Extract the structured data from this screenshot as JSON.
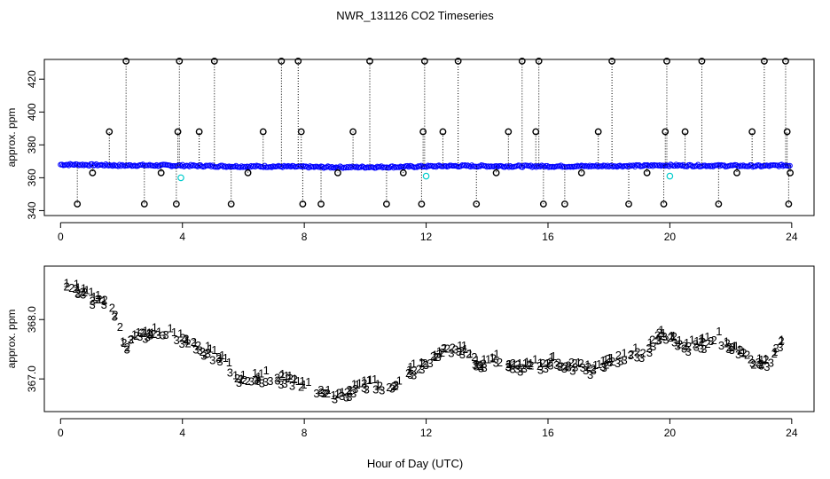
{
  "chart_data": {
    "title": "NWR_131126  CO2 Timeseries",
    "xlabel": "Hour of Day (UTC)",
    "panels": [
      {
        "name": "raw",
        "type": "scatter",
        "ylabel": "approx. ppm",
        "xlim": [
          -0.3,
          24.5
        ],
        "ylim": [
          337,
          432
        ],
        "xticks": [
          0,
          4,
          8,
          12,
          16,
          20,
          24
        ],
        "yticks": [
          340,
          360,
          380,
          400,
          420
        ],
        "ytick_labels": [
          "340",
          "360",
          "380",
          "400",
          "420"
        ],
        "baseline": [
          [
            0.0,
            368
          ],
          [
            0.5,
            368
          ],
          [
            1.0,
            367.8
          ],
          [
            1.5,
            367.7
          ],
          [
            2.0,
            367.4
          ],
          [
            2.5,
            367.6
          ],
          [
            3.0,
            367.5
          ],
          [
            4.0,
            367.4
          ],
          [
            5.0,
            367.1
          ],
          [
            6.0,
            366.9
          ],
          [
            7.0,
            366.9
          ],
          [
            8.0,
            366.6
          ],
          [
            9.0,
            366.4
          ],
          [
            10.0,
            366.5
          ],
          [
            11.0,
            366.6
          ],
          [
            12.0,
            366.9
          ],
          [
            13.0,
            367.2
          ],
          [
            14.0,
            367.1
          ],
          [
            15.0,
            367.0
          ],
          [
            16.0,
            367.0
          ],
          [
            17.0,
            367.0
          ],
          [
            18.0,
            367.2
          ],
          [
            19.0,
            367.2
          ],
          [
            19.8,
            367.6
          ],
          [
            20.5,
            367.4
          ],
          [
            21.0,
            367.4
          ],
          [
            22.0,
            367.3
          ],
          [
            23.0,
            367.1
          ],
          [
            23.7,
            367.5
          ]
        ],
        "spikes_high": [
          2.15,
          3.9,
          5.05,
          7.25,
          7.8,
          10.15,
          11.95,
          13.05,
          15.15,
          15.7,
          18.1,
          19.9,
          21.05,
          23.1,
          23.8
        ],
        "spikes_mid": [
          1.6,
          3.85,
          4.55,
          6.65,
          7.9,
          9.6,
          11.9,
          12.55,
          14.7,
          15.6,
          17.65,
          19.85,
          20.5,
          22.7,
          23.85
        ],
        "spikes_low": [
          0.55,
          2.75,
          3.8,
          5.6,
          7.95,
          8.55,
          10.7,
          11.85,
          13.65,
          15.85,
          16.55,
          18.65,
          19.8,
          21.6,
          23.9
        ],
        "spikes_small": [
          1.05,
          3.3,
          6.15,
          9.1,
          11.25,
          14.3,
          17.1,
          19.25,
          22.2,
          23.95
        ],
        "spike_levels": {
          "high": 431,
          "mid": 388,
          "low": 344,
          "small": 363
        },
        "cyan_points": [
          [
            3.95,
            360
          ],
          [
            12.0,
            361
          ],
          [
            20.0,
            361
          ]
        ]
      },
      {
        "name": "smoothed",
        "type": "scatter",
        "ylabel": "approx. ppm",
        "xlim": [
          -0.3,
          24.5
        ],
        "ylim": [
          366.45,
          368.9
        ],
        "xticks": [
          0,
          4,
          8,
          12,
          16,
          20,
          24
        ],
        "yticks": [
          367.0,
          368.0
        ],
        "ytick_labels": [
          "367.0",
          "368.0"
        ],
        "series_labels": [
          "1",
          "2",
          "3"
        ],
        "series_colors": [
          "#ff0000",
          "#00bb00",
          "#0000ff"
        ],
        "path": [
          [
            0.0,
            368.65
          ],
          [
            0.3,
            368.55
          ],
          [
            0.7,
            368.45
          ],
          [
            1.0,
            368.35
          ],
          [
            1.4,
            368.3
          ],
          [
            1.7,
            368.2
          ],
          [
            1.9,
            367.95
          ],
          [
            2.1,
            367.45
          ],
          [
            2.3,
            367.7
          ],
          [
            2.6,
            367.75
          ],
          [
            3.0,
            367.75
          ],
          [
            3.5,
            367.8
          ],
          [
            3.9,
            367.7
          ],
          [
            4.4,
            367.55
          ],
          [
            4.8,
            367.45
          ],
          [
            5.2,
            367.35
          ],
          [
            5.6,
            367.15
          ],
          [
            5.9,
            366.95
          ],
          [
            6.3,
            367.0
          ],
          [
            6.8,
            367.05
          ],
          [
            7.3,
            367.0
          ],
          [
            7.7,
            366.95
          ],
          [
            8.1,
            366.85
          ],
          [
            8.5,
            366.8
          ],
          [
            9.0,
            366.7
          ],
          [
            9.4,
            366.75
          ],
          [
            9.8,
            366.9
          ],
          [
            10.3,
            366.9
          ],
          [
            10.8,
            366.85
          ],
          [
            11.2,
            366.95
          ],
          [
            11.6,
            367.15
          ],
          [
            12.1,
            367.3
          ],
          [
            12.5,
            367.45
          ],
          [
            13.0,
            367.55
          ],
          [
            13.4,
            367.4
          ],
          [
            13.8,
            367.2
          ],
          [
            14.2,
            367.35
          ],
          [
            14.6,
            367.25
          ],
          [
            15.0,
            367.2
          ],
          [
            15.4,
            367.25
          ],
          [
            15.8,
            367.2
          ],
          [
            16.2,
            367.3
          ],
          [
            16.6,
            367.2
          ],
          [
            17.0,
            367.25
          ],
          [
            17.5,
            367.15
          ],
          [
            18.0,
            367.3
          ],
          [
            18.4,
            367.35
          ],
          [
            18.8,
            367.45
          ],
          [
            19.2,
            367.45
          ],
          [
            19.6,
            367.75
          ],
          [
            19.9,
            367.75
          ],
          [
            20.3,
            367.6
          ],
          [
            20.7,
            367.55
          ],
          [
            21.1,
            367.6
          ],
          [
            21.6,
            367.7
          ],
          [
            22.0,
            367.55
          ],
          [
            22.4,
            367.45
          ],
          [
            22.8,
            367.25
          ],
          [
            23.2,
            367.3
          ],
          [
            23.6,
            367.55
          ],
          [
            23.75,
            367.7
          ]
        ]
      }
    ]
  }
}
